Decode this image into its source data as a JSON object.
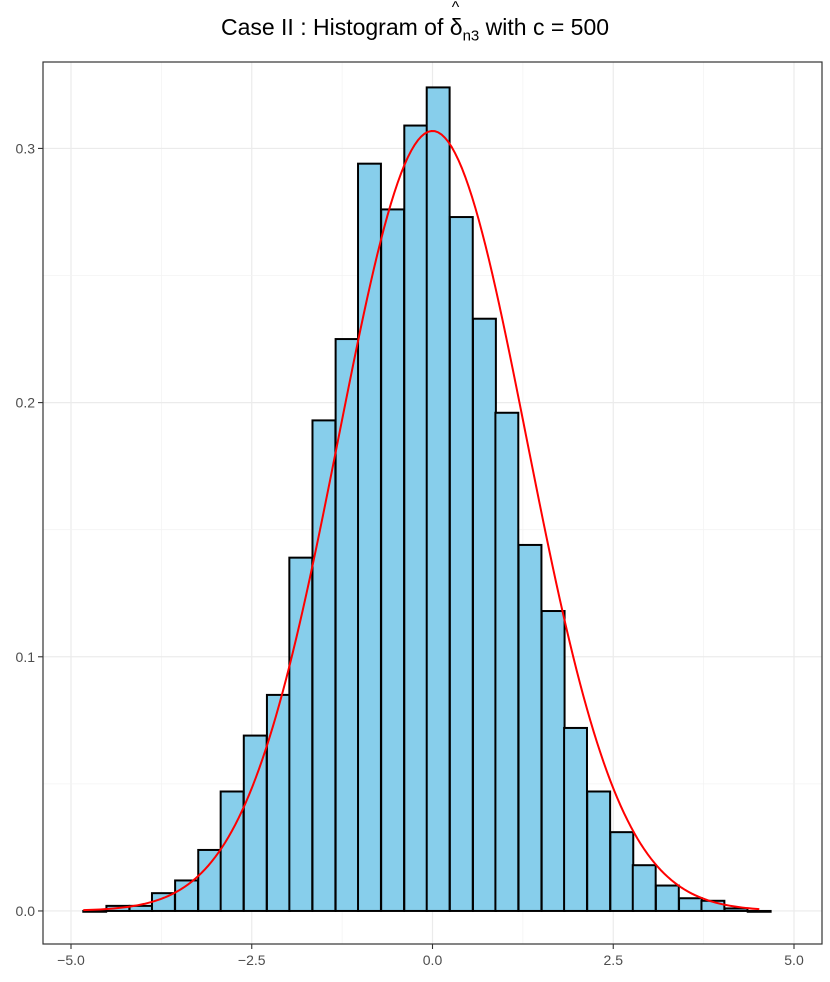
{
  "title": {
    "prefix": "Case II :  Histogram of ",
    "symbol": "δ",
    "hat": "^",
    "subscript": "n3",
    "suffix": " with c = 500"
  },
  "chart_data": {
    "type": "bar",
    "subtype": "histogram",
    "xlim": [
      -5.0,
      5.0
    ],
    "ylim": [
      0.0,
      0.33
    ],
    "x_ticks": [
      -5.0,
      -2.5,
      0.0,
      2.5,
      5.0
    ],
    "x_tick_labels": [
      "-5.0",
      "-2.5",
      "0.0",
      "2.5",
      "5.0"
    ],
    "y_ticks": [
      0.0,
      0.1,
      0.2,
      0.3
    ],
    "y_tick_labels": [
      "0.0",
      "0.1",
      "0.2",
      "0.3"
    ],
    "xlabel": "",
    "ylabel": "",
    "grid": true,
    "bin_width": 0.3167,
    "bin_lefts": [
      -4.83,
      -4.51,
      -4.19,
      -3.88,
      -3.56,
      -3.24,
      -2.93,
      -2.61,
      -2.29,
      -1.98,
      -1.66,
      -1.34,
      -1.03,
      -0.71,
      -0.39,
      -0.08,
      0.24,
      0.56,
      0.87,
      1.19,
      1.51,
      1.82,
      2.14,
      2.46,
      2.77,
      3.09,
      3.41,
      3.72,
      4.04,
      4.36
    ],
    "values": [
      0.0,
      0.002,
      0.002,
      0.007,
      0.012,
      0.024,
      0.047,
      0.069,
      0.085,
      0.139,
      0.193,
      0.225,
      0.294,
      0.276,
      0.309,
      0.324,
      0.273,
      0.233,
      0.196,
      0.144,
      0.118,
      0.072,
      0.047,
      0.031,
      0.018,
      0.01,
      0.005,
      0.004,
      0.001,
      0.0
    ],
    "bar_fill": "#87ceeb",
    "bar_stroke": "#000000",
    "density_curve": {
      "type": "normal",
      "mean": 0.0,
      "sd": 1.3,
      "x_range": [
        -4.83,
        4.52
      ],
      "color": "#ff0000"
    }
  }
}
